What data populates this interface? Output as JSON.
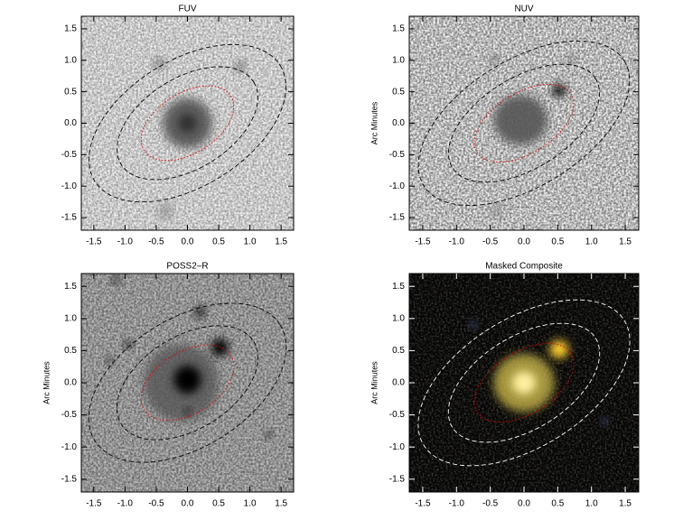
{
  "chart_data": [
    {
      "type": "image",
      "title": "FUV",
      "xlim": [
        -1.7,
        1.7
      ],
      "ylim": [
        -1.7,
        1.7
      ],
      "xticks": [
        -1.5,
        {
          "value": -1,
          "label": "-1.0"
        },
        -0.5,
        {
          "value": 0,
          "label": "0.0"
        },
        0.5,
        {
          "value": 1,
          "label": "1.0"
        },
        1.5
      ],
      "yticks": [
        -1.5,
        {
          "value": -1,
          "label": "-1.0"
        },
        -0.5,
        {
          "value": 0,
          "label": "0.0"
        },
        0.5,
        {
          "value": 1,
          "label": "1.0"
        },
        1.5
      ]
    },
    {
      "type": "image",
      "title": "NUV",
      "ylabel": "Arc Minutes",
      "xlim": [
        -1.7,
        1.7
      ],
      "ylim": [
        -1.7,
        1.7
      ],
      "xticks": [
        -1.5,
        {
          "value": -1,
          "label": "-1.0"
        },
        -0.5,
        {
          "value": 0,
          "label": "0.0"
        },
        0.5,
        {
          "value": 1,
          "label": "1.0"
        },
        1.5
      ],
      "yticks": [
        -1.5,
        {
          "value": -1,
          "label": "-1.0"
        },
        -0.5,
        {
          "value": 0,
          "label": "0.0"
        },
        0.5,
        {
          "value": 1,
          "label": "1.0"
        },
        1.5
      ]
    },
    {
      "type": "image",
      "title": "POSS2–R",
      "ylabel": "Arc Minutes",
      "xlim": [
        -1.7,
        1.7
      ],
      "ylim": [
        -1.7,
        1.7
      ],
      "xticks": [
        -1.5,
        {
          "value": -1,
          "label": "-1.0"
        },
        -0.5,
        {
          "value": 0,
          "label": "0.0"
        },
        0.5,
        {
          "value": 1,
          "label": "1.0"
        },
        1.5
      ],
      "yticks": [
        -1.5,
        {
          "value": -1,
          "label": "-1.0"
        },
        -0.5,
        {
          "value": 0,
          "label": "0.0"
        },
        0.5,
        {
          "value": 1,
          "label": "1.0"
        },
        1.5
      ]
    },
    {
      "type": "image",
      "title": "Masked Composite",
      "ylabel": "Arc Minutes",
      "xlim": [
        -1.7,
        1.7
      ],
      "ylim": [
        -1.7,
        1.7
      ],
      "xticks": [
        -1.5,
        {
          "value": -1,
          "label": "-1.0"
        },
        -0.5,
        {
          "value": 0,
          "label": "0.0"
        },
        0.5,
        {
          "value": 1,
          "label": "1.0"
        },
        1.5
      ],
      "yticks": [
        -1.5,
        {
          "value": -1,
          "label": "-1.0"
        },
        -0.5,
        {
          "value": 0,
          "label": "0.0"
        },
        0.5,
        {
          "value": 1,
          "label": "1.0"
        },
        1.5
      ]
    }
  ]
}
